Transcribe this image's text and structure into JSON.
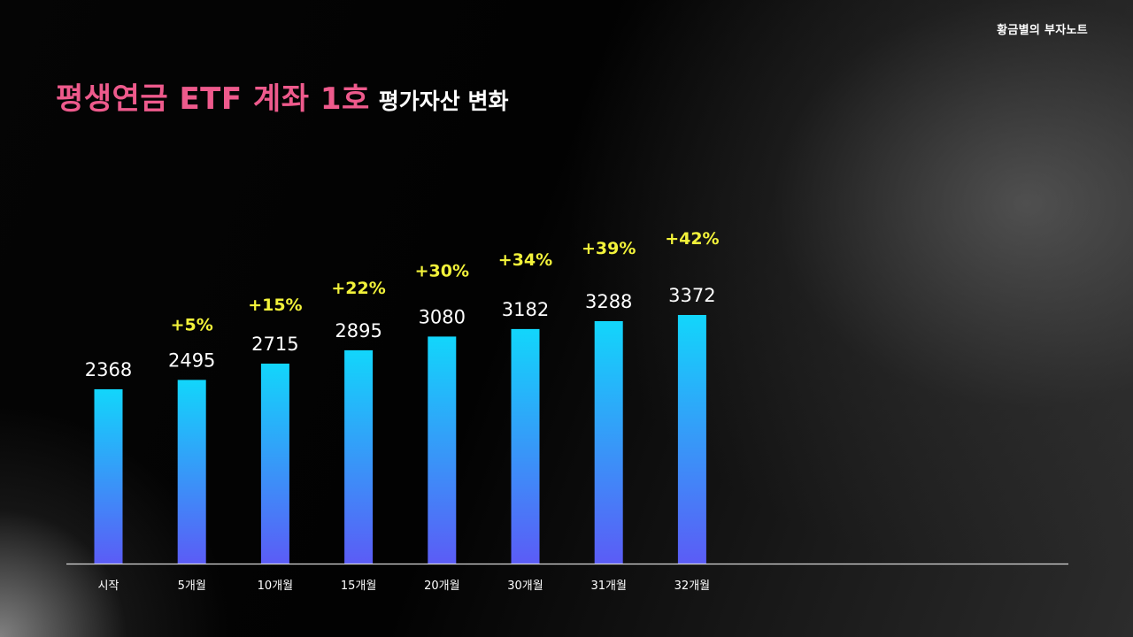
{
  "brand": "황금별의 부자노트",
  "title": {
    "main": "평생연금 ETF 계좌 1호",
    "sub": "평가자산 변화"
  },
  "colors": {
    "bar_top": "#12d6fb",
    "bar_bottom": "#5b5cf6",
    "title_accent": "#ee5a8c",
    "growth_label": "#f2f23a"
  },
  "chart_data": {
    "type": "bar",
    "title": "평생연금 ETF 계좌 1호 평가자산 변화",
    "xlabel": "",
    "ylabel": "",
    "categories": [
      "시작",
      "5개월",
      "10개월",
      "15개월",
      "20개월",
      "30개월",
      "31개월",
      "32개월"
    ],
    "values": [
      2368,
      2495,
      2715,
      2895,
      3080,
      3182,
      3288,
      3372
    ],
    "growth_labels": [
      "",
      "+5%",
      "+15%",
      "+22%",
      "+30%",
      "+34%",
      "+39%",
      "+42%"
    ],
    "ylim": [
      0,
      3550
    ],
    "grid": false,
    "legend": "none"
  }
}
